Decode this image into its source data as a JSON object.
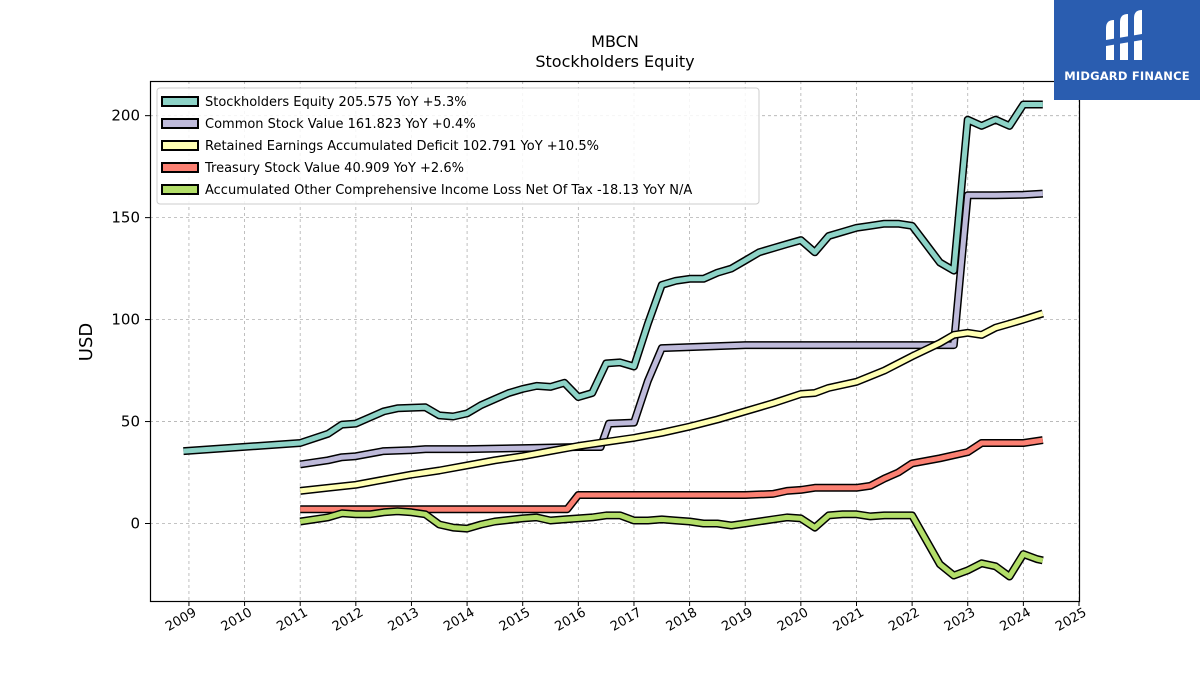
{
  "brand": {
    "name": "MIDGARD FINANCE",
    "color": "#2a5db0",
    "icon": "midgard-logo-mark"
  },
  "chart_data": {
    "type": "line",
    "title": "MBCN",
    "subtitle": "Stockholders  Equity",
    "ylabel": "USD",
    "xlabel": "",
    "xlim": [
      2008.3,
      2025.0
    ],
    "ylim": [
      -38,
      217
    ],
    "x_ticks": [
      2009,
      2010,
      2011,
      2012,
      2013,
      2014,
      2015,
      2016,
      2017,
      2018,
      2019,
      2020,
      2021,
      2022,
      2023,
      2024,
      2025
    ],
    "x_tick_labels": [
      "2009",
      "2010",
      "2011",
      "2012",
      "2013",
      "2014",
      "2015",
      "2016",
      "2017",
      "2018",
      "2019",
      "2020",
      "2021",
      "2022",
      "2023",
      "2024",
      "2025"
    ],
    "y_ticks": [
      0,
      50,
      100,
      150,
      200
    ],
    "y_tick_labels": [
      "0",
      "50",
      "100",
      "150",
      "200"
    ],
    "grid": true,
    "legend_position": "top-left",
    "series": [
      {
        "name": "Stockholders Equity  205.575 YoY +5.3%",
        "color": "#8dd3c7",
        "points": [
          [
            2008.9,
            35.5
          ],
          [
            2011.0,
            39.5
          ],
          [
            2011.5,
            44
          ],
          [
            2011.75,
            48.5
          ],
          [
            2012.0,
            49
          ],
          [
            2012.25,
            52
          ],
          [
            2012.5,
            55
          ],
          [
            2012.75,
            56.5
          ],
          [
            2013.25,
            57
          ],
          [
            2013.5,
            53
          ],
          [
            2013.75,
            52.5
          ],
          [
            2014.0,
            54
          ],
          [
            2014.25,
            58
          ],
          [
            2014.5,
            61
          ],
          [
            2014.75,
            64
          ],
          [
            2015.0,
            66
          ],
          [
            2015.25,
            67.5
          ],
          [
            2015.5,
            67
          ],
          [
            2015.75,
            69
          ],
          [
            2016.0,
            62
          ],
          [
            2016.25,
            64
          ],
          [
            2016.5,
            78.5
          ],
          [
            2016.75,
            79
          ],
          [
            2017.0,
            77
          ],
          [
            2017.25,
            98
          ],
          [
            2017.5,
            117
          ],
          [
            2017.75,
            119
          ],
          [
            2018.0,
            120
          ],
          [
            2018.25,
            120
          ],
          [
            2018.5,
            123
          ],
          [
            2018.75,
            125
          ],
          [
            2019.0,
            129
          ],
          [
            2019.25,
            133
          ],
          [
            2019.5,
            135
          ],
          [
            2019.75,
            137
          ],
          [
            2020.0,
            139
          ],
          [
            2020.25,
            133
          ],
          [
            2020.5,
            141
          ],
          [
            2020.75,
            143
          ],
          [
            2021.0,
            145
          ],
          [
            2021.25,
            146
          ],
          [
            2021.5,
            147
          ],
          [
            2021.75,
            147
          ],
          [
            2022.0,
            146
          ],
          [
            2022.25,
            137
          ],
          [
            2022.5,
            128
          ],
          [
            2022.75,
            124
          ],
          [
            2023.0,
            198
          ],
          [
            2023.25,
            195
          ],
          [
            2023.5,
            198
          ],
          [
            2023.75,
            195
          ],
          [
            2024.0,
            205.5
          ],
          [
            2024.35,
            205.5
          ]
        ]
      },
      {
        "name": "Common Stock Value  161.823 YoY +0.4%",
        "color": "#bebada",
        "points": [
          [
            2011.0,
            29
          ],
          [
            2011.5,
            31
          ],
          [
            2011.75,
            32.5
          ],
          [
            2012.0,
            33
          ],
          [
            2012.5,
            35.5
          ],
          [
            2013.0,
            36
          ],
          [
            2013.25,
            36.5
          ],
          [
            2014.0,
            36.5
          ],
          [
            2015.0,
            37
          ],
          [
            2016.0,
            37.5
          ],
          [
            2016.4,
            37.5
          ],
          [
            2016.55,
            49
          ],
          [
            2017.0,
            49.5
          ],
          [
            2017.25,
            70
          ],
          [
            2017.5,
            86
          ],
          [
            2018.0,
            86.5
          ],
          [
            2018.5,
            87
          ],
          [
            2019.0,
            87.5
          ],
          [
            2019.5,
            87.5
          ],
          [
            2020.0,
            87.5
          ],
          [
            2020.5,
            87.5
          ],
          [
            2021.0,
            87.5
          ],
          [
            2021.5,
            87.5
          ],
          [
            2022.0,
            87.5
          ],
          [
            2022.5,
            87.5
          ],
          [
            2022.75,
            87.5
          ],
          [
            2023.0,
            161
          ],
          [
            2023.5,
            161
          ],
          [
            2024.0,
            161.2
          ],
          [
            2024.35,
            161.8
          ]
        ]
      },
      {
        "name": "Retained Earnings Accumulated Deficit  102.791 YoY +10.5%",
        "color": "#ffffb3",
        "points": [
          [
            2011.0,
            16
          ],
          [
            2011.5,
            17.5
          ],
          [
            2012.0,
            19
          ],
          [
            2012.5,
            21.5
          ],
          [
            2013.0,
            24
          ],
          [
            2013.5,
            26
          ],
          [
            2014.0,
            28.5
          ],
          [
            2014.5,
            31
          ],
          [
            2015.0,
            33
          ],
          [
            2015.5,
            35.5
          ],
          [
            2016.0,
            38
          ],
          [
            2016.5,
            40
          ],
          [
            2017.0,
            42
          ],
          [
            2017.5,
            44.5
          ],
          [
            2018.0,
            47.5
          ],
          [
            2018.5,
            51
          ],
          [
            2019.0,
            55
          ],
          [
            2019.5,
            59
          ],
          [
            2020.0,
            63.5
          ],
          [
            2020.25,
            64
          ],
          [
            2020.5,
            66.5
          ],
          [
            2021.0,
            69.5
          ],
          [
            2021.5,
            75
          ],
          [
            2022.0,
            82
          ],
          [
            2022.5,
            88.5
          ],
          [
            2022.75,
            92.5
          ],
          [
            2023.0,
            93.5
          ],
          [
            2023.25,
            92.5
          ],
          [
            2023.5,
            96
          ],
          [
            2023.75,
            98
          ],
          [
            2024.0,
            100
          ],
          [
            2024.35,
            103
          ]
        ]
      },
      {
        "name": "Treasury Stock Value  40.909 YoY +2.6%",
        "color": "#fb8072",
        "points": [
          [
            2011.0,
            7
          ],
          [
            2012.0,
            7
          ],
          [
            2013.0,
            7
          ],
          [
            2014.0,
            7
          ],
          [
            2015.0,
            7
          ],
          [
            2015.8,
            7
          ],
          [
            2016.0,
            14
          ],
          [
            2017.0,
            14
          ],
          [
            2018.0,
            14
          ],
          [
            2019.0,
            14
          ],
          [
            2019.5,
            14.5
          ],
          [
            2019.75,
            16
          ],
          [
            2020.0,
            16.5
          ],
          [
            2020.25,
            17.5
          ],
          [
            2021.0,
            17.5
          ],
          [
            2021.25,
            18.5
          ],
          [
            2021.5,
            22
          ],
          [
            2021.75,
            25
          ],
          [
            2022.0,
            29.5
          ],
          [
            2022.5,
            32
          ],
          [
            2023.0,
            35
          ],
          [
            2023.25,
            39.5
          ],
          [
            2023.5,
            39.5
          ],
          [
            2024.0,
            39.5
          ],
          [
            2024.35,
            40.9
          ]
        ]
      },
      {
        "name": "Accumulated Other Comprehensive Income Loss Net Of Tax  -18.13 YoY N/A",
        "color": "#b3de69",
        "points": [
          [
            2011.0,
            1
          ],
          [
            2011.5,
            3
          ],
          [
            2011.75,
            5
          ],
          [
            2012.0,
            4.5
          ],
          [
            2012.25,
            4.5
          ],
          [
            2012.5,
            5.5
          ],
          [
            2012.75,
            6
          ],
          [
            2013.0,
            5.5
          ],
          [
            2013.25,
            4.5
          ],
          [
            2013.5,
            -0.5
          ],
          [
            2013.75,
            -2
          ],
          [
            2014.0,
            -2.5
          ],
          [
            2014.25,
            -0.5
          ],
          [
            2014.5,
            1
          ],
          [
            2015.0,
            2.5
          ],
          [
            2015.25,
            3
          ],
          [
            2015.5,
            1.5
          ],
          [
            2015.75,
            2
          ],
          [
            2016.0,
            2.5
          ],
          [
            2016.25,
            3
          ],
          [
            2016.5,
            4
          ],
          [
            2016.75,
            4
          ],
          [
            2017.0,
            1.5
          ],
          [
            2017.25,
            1.5
          ],
          [
            2017.5,
            2
          ],
          [
            2017.75,
            1.5
          ],
          [
            2018.0,
            1
          ],
          [
            2018.25,
            0
          ],
          [
            2018.5,
            0
          ],
          [
            2018.75,
            -1
          ],
          [
            2019.0,
            0
          ],
          [
            2019.5,
            2
          ],
          [
            2019.75,
            3
          ],
          [
            2020.0,
            2.5
          ],
          [
            2020.25,
            -2
          ],
          [
            2020.5,
            4
          ],
          [
            2020.75,
            4.5
          ],
          [
            2021.0,
            4.5
          ],
          [
            2021.25,
            3.5
          ],
          [
            2021.5,
            4
          ],
          [
            2021.75,
            4
          ],
          [
            2022.0,
            4
          ],
          [
            2022.25,
            -8
          ],
          [
            2022.5,
            -20
          ],
          [
            2022.75,
            -25.5
          ],
          [
            2023.0,
            -23
          ],
          [
            2023.25,
            -19.5
          ],
          [
            2023.5,
            -21
          ],
          [
            2023.75,
            -26
          ],
          [
            2024.0,
            -15
          ],
          [
            2024.25,
            -17.5
          ],
          [
            2024.35,
            -18.1
          ]
        ]
      }
    ]
  }
}
